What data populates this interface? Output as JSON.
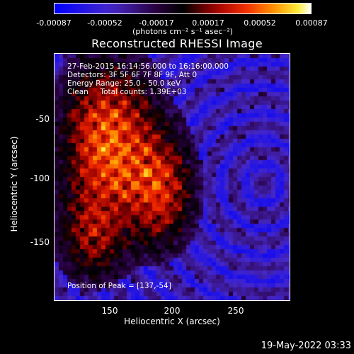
{
  "colorbar": {
    "ticks": [
      "-0.00087",
      "-0.00052",
      "-0.00017",
      "0.00017",
      "0.00052",
      "0.00087"
    ],
    "unit": "(photons cm⁻² s⁻¹ asec⁻²)"
  },
  "title": "Reconstructed RHESSI Image",
  "annotations": {
    "line1": "27-Feb-2015 16:14:56.000 to 16:16:00.000",
    "line2": "Detectors: 3F 5F 6F 7F 8F 9F, Att 0",
    "line3": "Energy Range: 25.0 - 50.0 keV",
    "line4": "Clean     Total counts: 1.39E+03",
    "peak": "Position of Peak = [137,-54]"
  },
  "axes": {
    "xlabel": "Heliocentric X (arcsec)",
    "ylabel": "Heliocentric Y (arcsec)",
    "xticks": [
      "150",
      "200",
      "250"
    ],
    "yticks": [
      "-50",
      "-100",
      "-150"
    ],
    "xrange": [
      108,
      295
    ],
    "yrange": [
      -196,
      -6
    ]
  },
  "datestamp": "19-May-2022 03:33",
  "colors": {
    "background": "#000000",
    "frame": "#ffffff"
  }
}
